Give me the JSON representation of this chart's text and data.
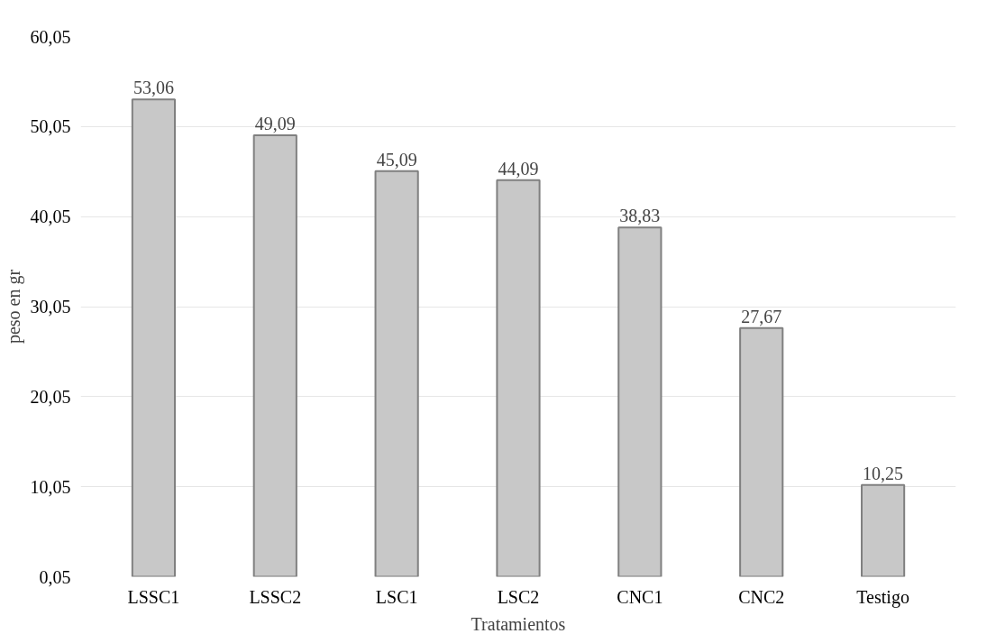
{
  "chart_data": {
    "type": "bar",
    "xlabel": "Tratamientos",
    "ylabel": "peso en gr",
    "categories": [
      "LSSC1",
      "LSSC2",
      "LSC1",
      "LSC2",
      "CNC1",
      "CNC2",
      "Testigo"
    ],
    "values": [
      53.06,
      49.09,
      45.09,
      44.09,
      38.83,
      27.67,
      10.25
    ],
    "value_labels": [
      "53,06",
      "49,09",
      "45,09",
      "44,09",
      "38,83",
      "27,67",
      "10,25"
    ],
    "color": "#c8c8c8",
    "ylim": [
      0.05,
      60.05
    ],
    "yticks": [
      {
        "value": 0.05,
        "label": "0,05"
      },
      {
        "value": 10.05,
        "label": "10,05"
      },
      {
        "value": 20.05,
        "label": "20,05"
      },
      {
        "value": 30.05,
        "label": "30,05"
      },
      {
        "value": 40.05,
        "label": "40,05"
      },
      {
        "value": 50.05,
        "label": "50,05"
      },
      {
        "value": 60.05,
        "label": "60,05"
      }
    ],
    "grid": "y"
  }
}
